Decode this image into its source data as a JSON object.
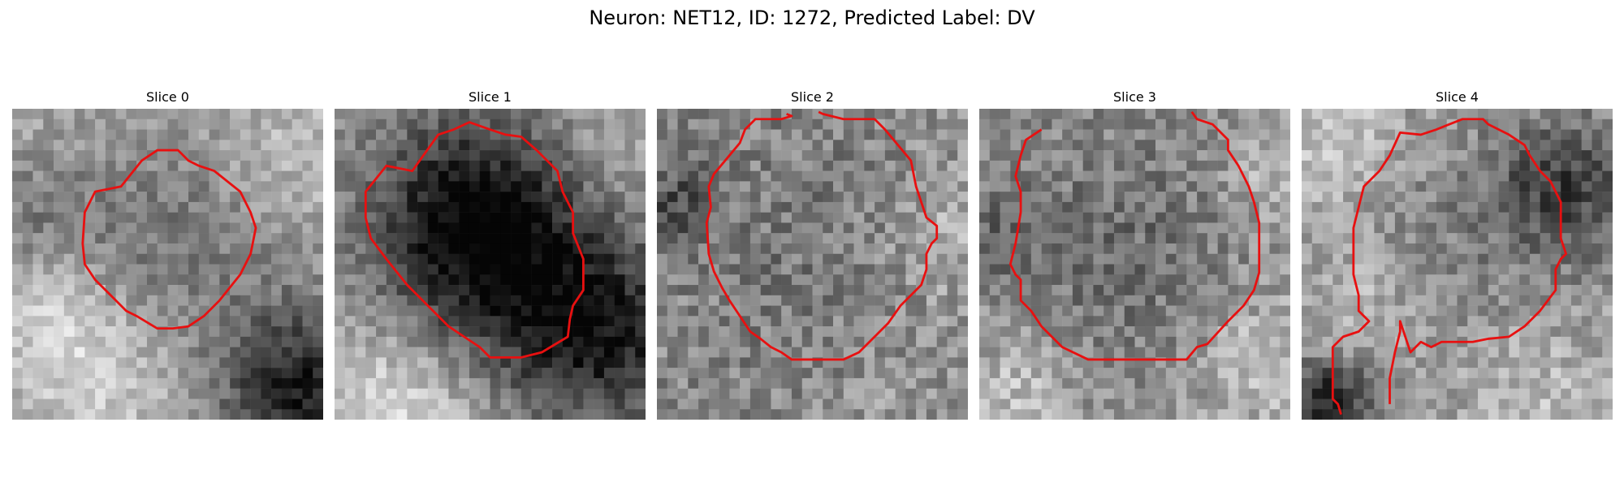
{
  "figure": {
    "suptitle": "Neuron: NET12, ID: 1272, Predicted Label: DV"
  },
  "panels": [
    {
      "title": "Slice 0"
    },
    {
      "title": "Slice 1"
    },
    {
      "title": "Slice 2"
    },
    {
      "title": "Slice 3"
    },
    {
      "title": "Slice 4"
    }
  ],
  "colors": {
    "contour": "#e81010",
    "background": "#ffffff",
    "colormap": "grayscale"
  }
}
